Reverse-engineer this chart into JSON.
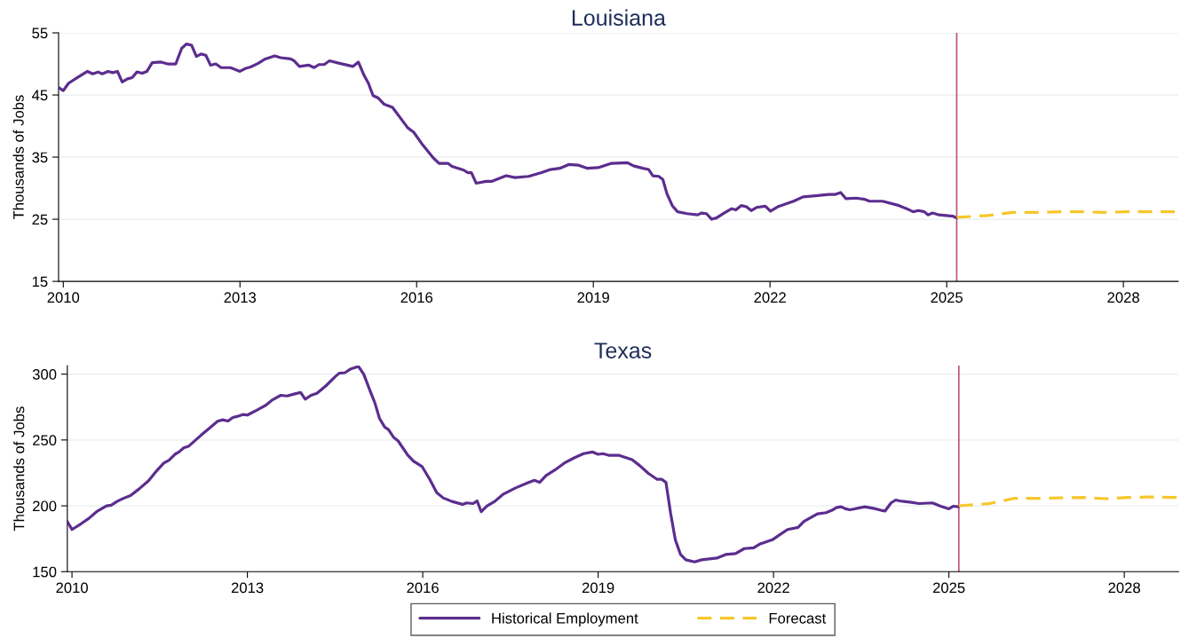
{
  "chart_data": [
    {
      "type": "line",
      "title": "Louisiana",
      "ylabel": "Thousands of Jobs",
      "xlim": [
        2009.92,
        2028.93
      ],
      "xticks": [
        2010,
        2013,
        2016,
        2019,
        2022,
        2025,
        2028
      ],
      "ylim": [
        15,
        55
      ],
      "yticks": [
        15,
        25,
        35,
        45,
        55
      ],
      "grid": "y",
      "legend": false,
      "ref_lines": [
        {
          "axis": "x",
          "value": 2025.17,
          "color": "#c0507a"
        }
      ],
      "series": [
        {
          "color": "#5c2d8e",
          "line_style": "solid",
          "x": [
            2009.92,
            2010.0,
            2010.09,
            2010.24,
            2010.41,
            2010.5,
            2010.59,
            2010.66,
            2010.76,
            2010.84,
            2010.92,
            2011.0,
            2011.09,
            2011.17,
            2011.25,
            2011.34,
            2011.42,
            2011.51,
            2011.66,
            2011.77,
            2011.91,
            2012.01,
            2012.09,
            2012.18,
            2012.26,
            2012.34,
            2012.42,
            2012.5,
            2012.59,
            2012.68,
            2012.84,
            2013.0,
            2013.1,
            2013.18,
            2013.31,
            2013.43,
            2013.59,
            2013.69,
            2013.86,
            2013.92,
            2014.01,
            2014.17,
            2014.26,
            2014.34,
            2014.43,
            2014.52,
            2014.69,
            2014.92,
            2015.01,
            2015.11,
            2015.18,
            2015.26,
            2015.35,
            2015.45,
            2015.59,
            2015.85,
            2015.95,
            2016.1,
            2016.28,
            2016.38,
            2016.53,
            2016.6,
            2016.8,
            2016.87,
            2016.93,
            2017.01,
            2017.18,
            2017.28,
            2017.52,
            2017.67,
            2017.9,
            2018.12,
            2018.27,
            2018.43,
            2018.58,
            2018.75,
            2018.9,
            2019.08,
            2019.31,
            2019.58,
            2019.68,
            2019.84,
            2019.94,
            2020.01,
            2020.11,
            2020.18,
            2020.25,
            2020.34,
            2020.43,
            2020.59,
            2020.77,
            2020.84,
            2020.92,
            2021.01,
            2021.09,
            2021.22,
            2021.35,
            2021.42,
            2021.51,
            2021.6,
            2021.68,
            2021.77,
            2021.92,
            2022.01,
            2022.13,
            2022.4,
            2022.56,
            2022.81,
            2023.0,
            2023.11,
            2023.2,
            2023.29,
            2023.46,
            2023.61,
            2023.69,
            2023.91,
            2024.19,
            2024.32,
            2024.43,
            2024.52,
            2024.62,
            2024.68,
            2024.76,
            2024.87,
            2025.1,
            2025.17
          ],
          "values": [
            46.2,
            45.7,
            46.9,
            47.8,
            48.8,
            48.4,
            48.7,
            48.4,
            48.8,
            48.6,
            48.8,
            47.1,
            47.6,
            47.8,
            48.7,
            48.5,
            48.8,
            50.2,
            50.3,
            50.0,
            50.0,
            52.5,
            53.2,
            53.0,
            51.2,
            51.6,
            51.4,
            49.8,
            50.0,
            49.4,
            49.4,
            48.8,
            49.3,
            49.5,
            50.1,
            50.8,
            51.3,
            51.0,
            50.8,
            50.5,
            49.6,
            49.8,
            49.4,
            49.9,
            49.9,
            50.5,
            50.1,
            49.6,
            50.3,
            48.1,
            46.9,
            44.9,
            44.5,
            43.5,
            43.0,
            39.7,
            39.0,
            37.0,
            34.9,
            34.0,
            34.0,
            33.5,
            32.9,
            32.5,
            32.5,
            30.8,
            31.1,
            31.1,
            32.0,
            31.7,
            31.9,
            32.5,
            33.0,
            33.2,
            33.8,
            33.7,
            33.2,
            33.3,
            34.0,
            34.1,
            33.6,
            33.2,
            33.0,
            32.0,
            31.9,
            31.4,
            29.1,
            27.2,
            26.2,
            25.9,
            25.7,
            26.0,
            25.9,
            25.0,
            25.2,
            26.0,
            26.7,
            26.5,
            27.2,
            27.0,
            26.4,
            26.9,
            27.1,
            26.3,
            27.0,
            27.9,
            28.6,
            28.8,
            29.0,
            29.0,
            29.3,
            28.3,
            28.4,
            28.2,
            27.9,
            27.9,
            27.2,
            26.7,
            26.2,
            26.4,
            26.2,
            25.7,
            26.0,
            25.7,
            25.5,
            25.2
          ]
        },
        {
          "color": "#f7c62a",
          "line_style": "dashed",
          "x": [
            2025.17,
            2025.7,
            2026.11,
            2026.51,
            2026.96,
            2027.32,
            2027.67,
            2028.02,
            2028.37,
            2028.93
          ],
          "values": [
            25.3,
            25.6,
            26.1,
            26.1,
            26.2,
            26.2,
            26.1,
            26.2,
            26.2,
            26.2
          ]
        }
      ]
    },
    {
      "type": "line",
      "title": "Texas",
      "ylabel": "Thousands of Jobs",
      "xlim": [
        2009.92,
        2028.93
      ],
      "xticks": [
        2010,
        2013,
        2016,
        2019,
        2022,
        2025,
        2028
      ],
      "ylim": [
        150,
        306.5
      ],
      "yticks": [
        150,
        200,
        250,
        300
      ],
      "grid": "y",
      "legend": "bottom",
      "ref_lines": [
        {
          "axis": "x",
          "value": 2025.17,
          "color": "#c0507a"
        }
      ],
      "series": [
        {
          "name": "Historical Employment",
          "color": "#5c2d8e",
          "line_style": "solid",
          "x": [
            2009.92,
            2010.0,
            2010.16,
            2010.29,
            2010.42,
            2010.59,
            2010.67,
            2010.77,
            2010.87,
            2011.0,
            2011.15,
            2011.31,
            2011.43,
            2011.57,
            2011.66,
            2011.76,
            2011.83,
            2011.91,
            2012.0,
            2012.21,
            2012.37,
            2012.49,
            2012.58,
            2012.67,
            2012.75,
            2012.82,
            2012.92,
            2013.0,
            2013.18,
            2013.32,
            2013.43,
            2013.57,
            2013.68,
            2013.81,
            2013.91,
            2013.99,
            2014.09,
            2014.19,
            2014.34,
            2014.5,
            2014.57,
            2014.67,
            2014.77,
            2014.9,
            2014.99,
            2015.1,
            2015.18,
            2015.26,
            2015.35,
            2015.41,
            2015.5,
            2015.58,
            2015.74,
            2015.84,
            2015.99,
            2016.12,
            2016.24,
            2016.35,
            2016.5,
            2016.68,
            2016.75,
            2016.86,
            2016.93,
            2017.0,
            2017.1,
            2017.23,
            2017.38,
            2017.58,
            2017.78,
            2017.91,
            2018.0,
            2018.11,
            2018.26,
            2018.42,
            2018.59,
            2018.75,
            2018.9,
            2019.0,
            2019.08,
            2019.18,
            2019.35,
            2019.58,
            2019.71,
            2019.86,
            2020.01,
            2020.09,
            2020.16,
            2020.24,
            2020.32,
            2020.41,
            2020.5,
            2020.65,
            2020.77,
            2021.03,
            2021.18,
            2021.35,
            2021.5,
            2021.66,
            2021.76,
            2021.98,
            2022.09,
            2022.24,
            2022.42,
            2022.52,
            2022.75,
            2022.9,
            2023.0,
            2023.08,
            2023.16,
            2023.23,
            2023.31,
            2023.56,
            2023.71,
            2023.84,
            2023.91,
            2024.01,
            2024.09,
            2024.16,
            2024.36,
            2024.49,
            2024.72,
            2024.85,
            2025.0,
            2025.08,
            2025.17
          ],
          "values": [
            188.1,
            182.0,
            186.5,
            190.5,
            195.5,
            199.9,
            200.4,
            203.3,
            205.5,
            207.8,
            212.9,
            219.0,
            225.7,
            232.4,
            234.6,
            239.1,
            240.9,
            244.0,
            245.4,
            253.7,
            259.7,
            264.2,
            265.3,
            264.4,
            267.1,
            267.8,
            269.3,
            268.9,
            273.1,
            276.5,
            280.5,
            283.9,
            283.4,
            285.0,
            286.1,
            281.0,
            283.9,
            285.4,
            291.0,
            298.0,
            300.7,
            301.1,
            304.0,
            305.8,
            300.0,
            287.2,
            278.3,
            266.4,
            259.7,
            258.1,
            252.1,
            249.2,
            238.7,
            234.0,
            229.7,
            220.1,
            210.0,
            206.0,
            203.3,
            201.1,
            202.2,
            201.7,
            203.7,
            195.5,
            199.9,
            203.3,
            208.9,
            213.4,
            217.2,
            219.4,
            217.8,
            223.0,
            227.2,
            232.4,
            236.4,
            239.6,
            240.9,
            239.1,
            239.6,
            238.4,
            238.4,
            235.1,
            230.6,
            224.6,
            220.1,
            220.1,
            217.8,
            194.3,
            174.2,
            163.0,
            159.0,
            157.4,
            159.0,
            160.3,
            163.0,
            163.7,
            167.5,
            168.1,
            170.8,
            174.2,
            177.5,
            182.0,
            183.6,
            188.1,
            193.9,
            194.8,
            196.6,
            198.8,
            199.3,
            197.7,
            197.0,
            199.3,
            198.1,
            196.6,
            196.1,
            202.2,
            204.4,
            203.7,
            202.6,
            201.7,
            202.2,
            199.9,
            197.7,
            199.7,
            199.3
          ]
        },
        {
          "name": "Forecast",
          "color": "#f7c62a",
          "line_style": "dashed",
          "x": [
            2025.17,
            2025.68,
            2026.11,
            2026.54,
            2026.95,
            2027.3,
            2027.68,
            2028.06,
            2028.39,
            2028.92
          ],
          "values": [
            200.0,
            201.6,
            205.6,
            205.6,
            206.1,
            206.3,
            205.4,
            206.3,
            206.7,
            206.3
          ]
        }
      ]
    }
  ]
}
